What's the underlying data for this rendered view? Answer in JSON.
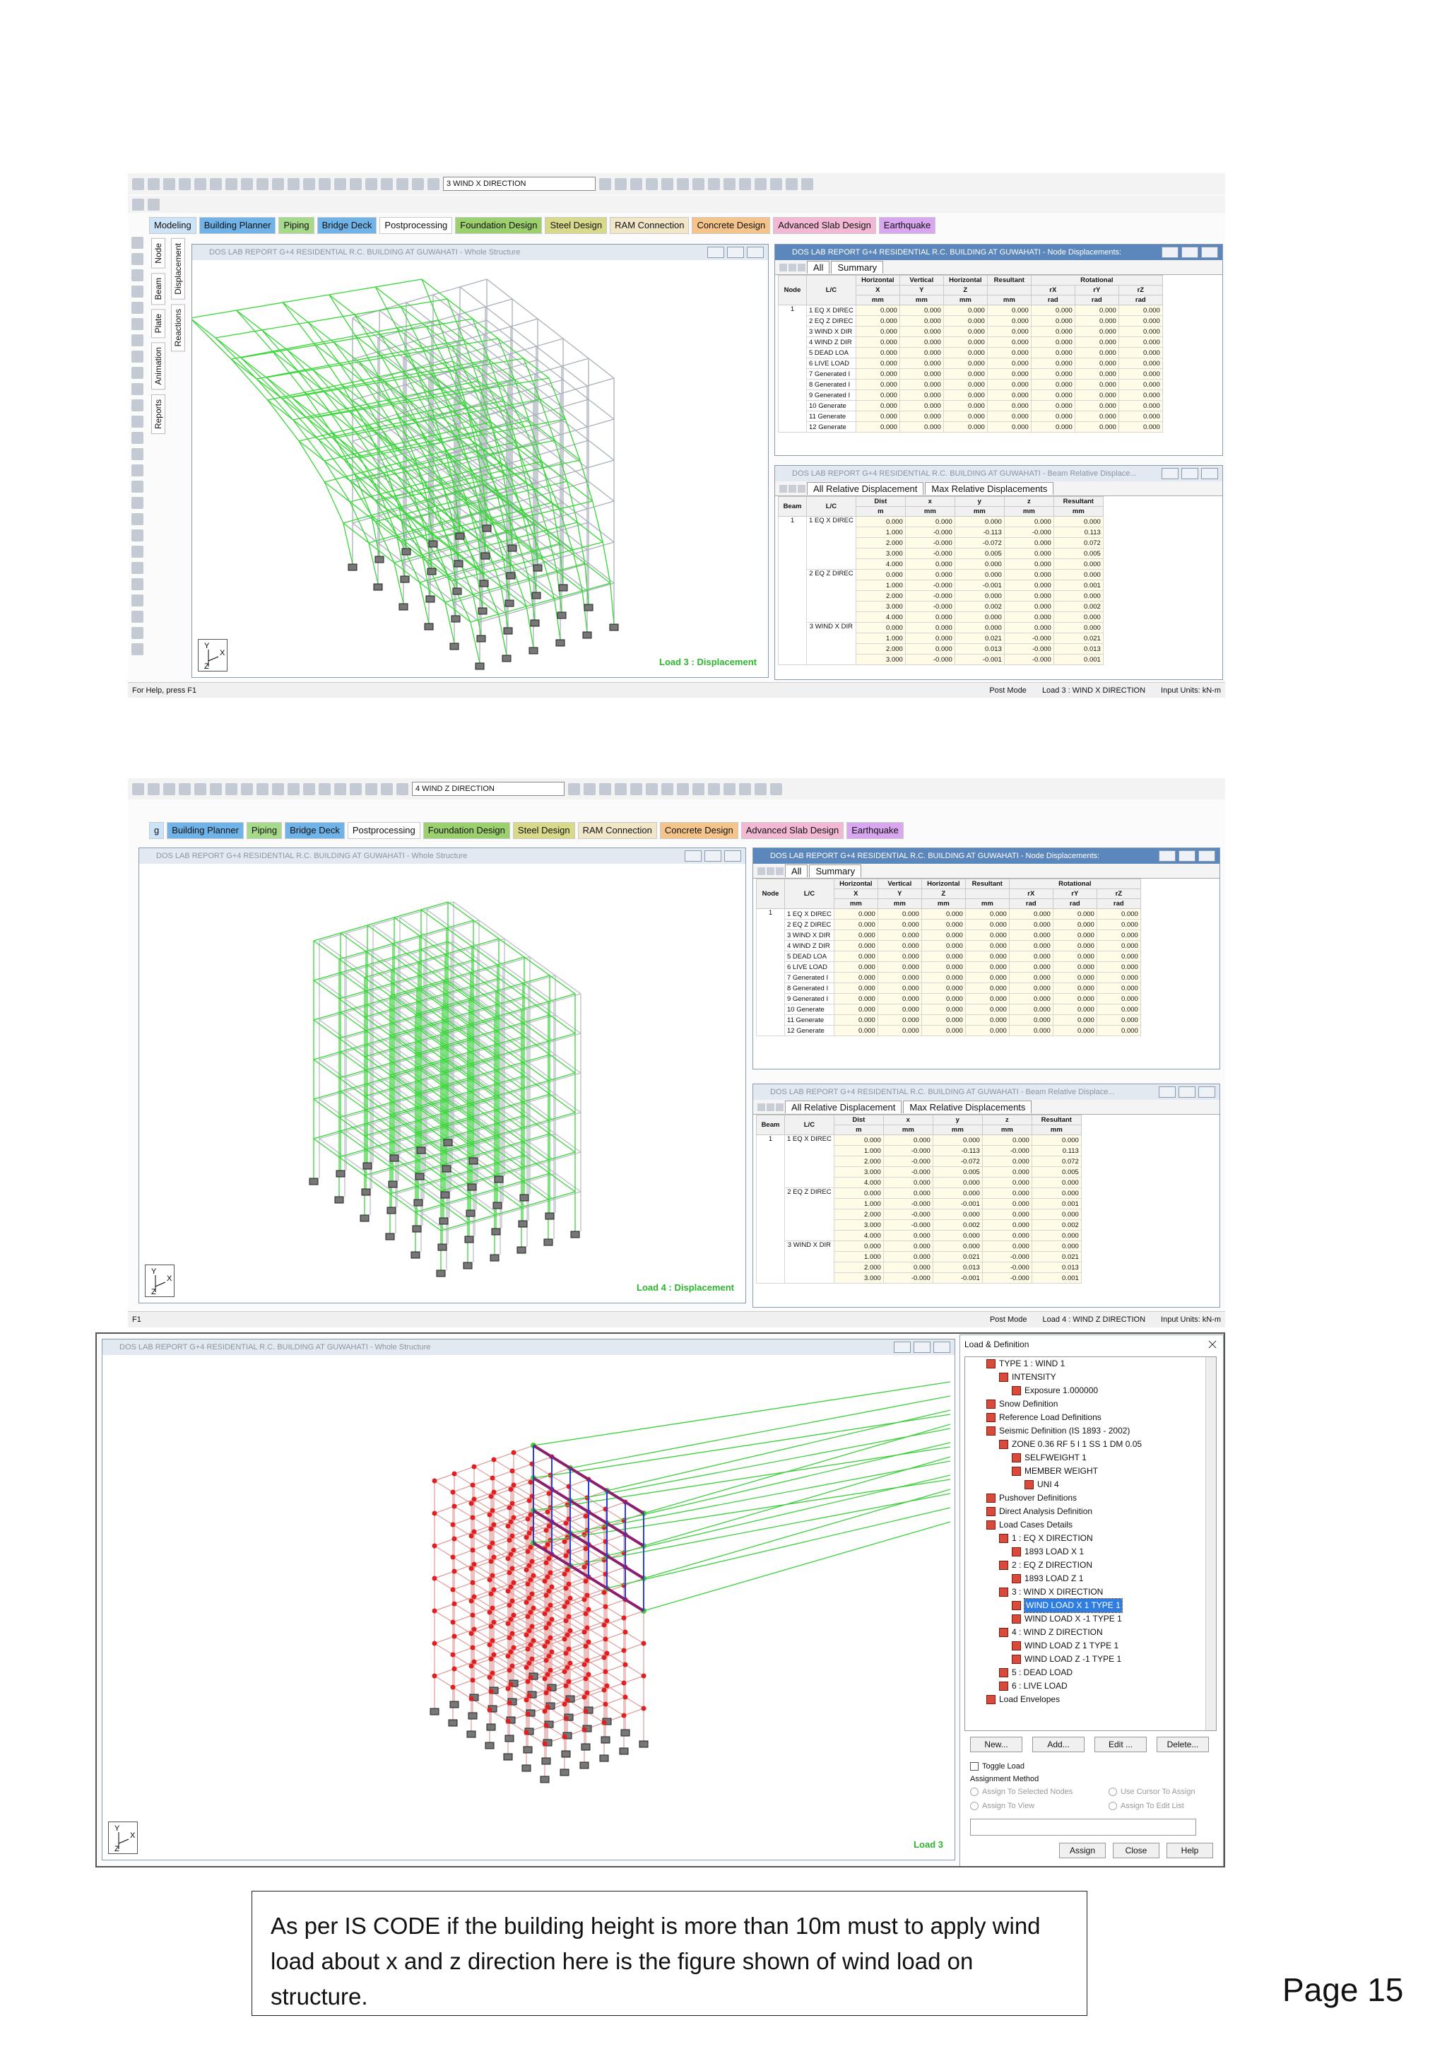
{
  "screenshot_1": {
    "toolbar_dropdown": "3 WIND X DIRECTION",
    "tabs": [
      {
        "text": "Modeling",
        "color": "#cde3f7"
      },
      {
        "text": "Building Planner",
        "color": "#6fb3e8"
      },
      {
        "text": "Piping",
        "color": "#a6d98a"
      },
      {
        "text": "Bridge Deck",
        "color": "#6fb3e8"
      },
      {
        "text": "Postprocessing",
        "color": "#ffffff"
      },
      {
        "text": "Foundation Design",
        "color": "#9ccf6e"
      },
      {
        "text": "Steel Design",
        "color": "#d9d98c"
      },
      {
        "text": "RAM Connection",
        "color": "#f2e6c9"
      },
      {
        "text": "Concrete Design",
        "color": "#f5c48a"
      },
      {
        "text": "Advanced Slab Design",
        "color": "#f2b8d4"
      },
      {
        "text": "Earthquake",
        "color": "#d9a6f0"
      }
    ],
    "side_tabs_left": [
      "Node",
      "Beam",
      "Plate",
      "Animation",
      "Reports"
    ],
    "side_tabs_right": [
      "Displacement",
      "Reactions"
    ],
    "view_title": "DOS LAB REPORT G+4 RESIDENTIAL R.C. BUILDING AT GUWAHATI - Whole Structure",
    "axis_labels": [
      "Y",
      "X",
      "Z"
    ],
    "view_label": "Load 3 : Displacement",
    "node_window_title": "DOS LAB REPORT G+4 RESIDENTIAL R.C. BUILDING AT GUWAHATI - Node Displacements:",
    "node_table": {
      "tabs": [
        "All",
        "Summary"
      ],
      "row_headers": [
        "Node",
        "L/C"
      ],
      "group_headers": [
        "Horizontal",
        "Vertical",
        "Horizontal",
        "Resultant",
        "Rotational"
      ],
      "columns": [
        "X",
        "Y",
        "Z",
        "rX",
        "rY",
        "rZ"
      ],
      "units": [
        "mm",
        "mm",
        "mm",
        "mm",
        "rad",
        "rad",
        "rad"
      ],
      "node": "1",
      "rows": [
        {
          "lc": "1 EQ X DIREC",
          "values": [
            "0.000",
            "0.000",
            "0.000",
            "0.000",
            "0.000",
            "0.000",
            "0.000"
          ]
        },
        {
          "lc": "2 EQ Z DIREC",
          "values": [
            "0.000",
            "0.000",
            "0.000",
            "0.000",
            "0.000",
            "0.000",
            "0.000"
          ]
        },
        {
          "lc": "3 WIND X DIR",
          "values": [
            "0.000",
            "0.000",
            "0.000",
            "0.000",
            "0.000",
            "0.000",
            "0.000"
          ]
        },
        {
          "lc": "4 WIND Z DIR",
          "values": [
            "0.000",
            "0.000",
            "0.000",
            "0.000",
            "0.000",
            "0.000",
            "0.000"
          ]
        },
        {
          "lc": "5 DEAD LOA",
          "values": [
            "0.000",
            "0.000",
            "0.000",
            "0.000",
            "0.000",
            "0.000",
            "0.000"
          ]
        },
        {
          "lc": "6 LIVE LOAD",
          "values": [
            "0.000",
            "0.000",
            "0.000",
            "0.000",
            "0.000",
            "0.000",
            "0.000"
          ]
        },
        {
          "lc": "7 Generated I",
          "values": [
            "0.000",
            "0.000",
            "0.000",
            "0.000",
            "0.000",
            "0.000",
            "0.000"
          ]
        },
        {
          "lc": "8 Generated I",
          "values": [
            "0.000",
            "0.000",
            "0.000",
            "0.000",
            "0.000",
            "0.000",
            "0.000"
          ]
        },
        {
          "lc": "9 Generated I",
          "values": [
            "0.000",
            "0.000",
            "0.000",
            "0.000",
            "0.000",
            "0.000",
            "0.000"
          ]
        },
        {
          "lc": "10 Generate",
          "values": [
            "0.000",
            "0.000",
            "0.000",
            "0.000",
            "0.000",
            "0.000",
            "0.000"
          ]
        },
        {
          "lc": "11 Generate",
          "values": [
            "0.000",
            "0.000",
            "0.000",
            "0.000",
            "0.000",
            "0.000",
            "0.000"
          ]
        },
        {
          "lc": "12 Generate",
          "values": [
            "0.000",
            "0.000",
            "0.000",
            "0.000",
            "0.000",
            "0.000",
            "0.000"
          ]
        }
      ]
    },
    "beam_window_title": "DOS LAB REPORT G+4 RESIDENTIAL R.C. BUILDING AT GUWAHATI - Beam Relative Displace...",
    "beam_table": {
      "tabs": [
        "All Relative Displacement",
        "Max Relative Displacements"
      ],
      "headers": [
        "Beam",
        "L/C",
        "Dist",
        "x",
        "y",
        "z",
        "Resultant"
      ],
      "units": [
        "m",
        "mm",
        "mm",
        "mm",
        "mm"
      ],
      "beam": "1",
      "groups": [
        {
          "lc": "1 EQ X DIREC",
          "rows": [
            [
              "0.000",
              "0.000",
              "0.000",
              "0.000",
              "0.000"
            ],
            [
              "1.000",
              "-0.000",
              "-0.113",
              "-0.000",
              "0.113"
            ],
            [
              "2.000",
              "-0.000",
              "-0.072",
              "0.000",
              "0.072"
            ],
            [
              "3.000",
              "-0.000",
              "0.005",
              "0.000",
              "0.005"
            ],
            [
              "4.000",
              "0.000",
              "0.000",
              "0.000",
              "0.000"
            ]
          ]
        },
        {
          "lc": "2 EQ Z DIREC",
          "rows": [
            [
              "0.000",
              "0.000",
              "0.000",
              "0.000",
              "0.000"
            ],
            [
              "1.000",
              "-0.000",
              "-0.001",
              "0.000",
              "0.001"
            ],
            [
              "2.000",
              "-0.000",
              "0.000",
              "0.000",
              "0.000"
            ],
            [
              "3.000",
              "-0.000",
              "0.002",
              "0.000",
              "0.002"
            ],
            [
              "4.000",
              "0.000",
              "0.000",
              "0.000",
              "0.000"
            ]
          ]
        },
        {
          "lc": "3 WIND X DIR",
          "rows": [
            [
              "0.000",
              "0.000",
              "0.000",
              "0.000",
              "0.000"
            ],
            [
              "1.000",
              "0.000",
              "0.021",
              "-0.000",
              "0.021"
            ],
            [
              "2.000",
              "0.000",
              "0.013",
              "-0.000",
              "0.013"
            ],
            [
              "3.000",
              "-0.000",
              "-0.001",
              "-0.000",
              "0.001"
            ]
          ]
        }
      ]
    },
    "status": {
      "help": "For Help, press F1",
      "mode": "Post Mode",
      "load": "Load 3 : WIND X DIRECTION",
      "units": "Input Units:  kN-m"
    }
  },
  "screenshot_2": {
    "toolbar_dropdown": "4 WIND Z DIRECTION",
    "tabs": [
      {
        "text": "g",
        "color": "#cde3f7"
      },
      {
        "text": "Building Planner",
        "color": "#6fb3e8"
      },
      {
        "text": "Piping",
        "color": "#a6d98a"
      },
      {
        "text": "Bridge Deck",
        "color": "#6fb3e8"
      },
      {
        "text": "Postprocessing",
        "color": "#ffffff"
      },
      {
        "text": "Foundation Design",
        "color": "#9ccf6e"
      },
      {
        "text": "Steel Design",
        "color": "#d9d98c"
      },
      {
        "text": "RAM Connection",
        "color": "#f2e6c9"
      },
      {
        "text": "Concrete Design",
        "color": "#f5c48a"
      },
      {
        "text": "Advanced Slab Design",
        "color": "#f2b8d4"
      },
      {
        "text": "Earthquake",
        "color": "#d9a6f0"
      }
    ],
    "view_title": "DOS LAB REPORT G+4 RESIDENTIAL R.C. BUILDING AT GUWAHATI - Whole Structure",
    "axis_labels": [
      "Y",
      "X",
      "Z"
    ],
    "view_label": "Load 4 : Displacement",
    "node_window_title": "DOS LAB REPORT G+4 RESIDENTIAL R.C. BUILDING AT GUWAHATI - Node Displacements:",
    "node_table": {
      "tabs": [
        "All",
        "Summary"
      ],
      "row_headers": [
        "Node",
        "L/C"
      ],
      "group_headers": [
        "Horizontal",
        "Vertical",
        "Horizontal",
        "Resultant",
        "Rotational"
      ],
      "columns": [
        "X",
        "Y",
        "Z",
        "rX",
        "rY",
        "rZ"
      ],
      "units": [
        "mm",
        "mm",
        "mm",
        "mm",
        "rad",
        "rad",
        "rad"
      ],
      "node": "1",
      "rows": [
        {
          "lc": "1 EQ X DIREC",
          "values": [
            "0.000",
            "0.000",
            "0.000",
            "0.000",
            "0.000",
            "0.000",
            "0.000"
          ]
        },
        {
          "lc": "2 EQ Z DIREC",
          "values": [
            "0.000",
            "0.000",
            "0.000",
            "0.000",
            "0.000",
            "0.000",
            "0.000"
          ]
        },
        {
          "lc": "3 WIND X DIR",
          "values": [
            "0.000",
            "0.000",
            "0.000",
            "0.000",
            "0.000",
            "0.000",
            "0.000"
          ]
        },
        {
          "lc": "4 WIND Z DIR",
          "values": [
            "0.000",
            "0.000",
            "0.000",
            "0.000",
            "0.000",
            "0.000",
            "0.000"
          ]
        },
        {
          "lc": "5 DEAD LOA",
          "values": [
            "0.000",
            "0.000",
            "0.000",
            "0.000",
            "0.000",
            "0.000",
            "0.000"
          ]
        },
        {
          "lc": "6 LIVE LOAD",
          "values": [
            "0.000",
            "0.000",
            "0.000",
            "0.000",
            "0.000",
            "0.000",
            "0.000"
          ]
        },
        {
          "lc": "7 Generated I",
          "values": [
            "0.000",
            "0.000",
            "0.000",
            "0.000",
            "0.000",
            "0.000",
            "0.000"
          ]
        },
        {
          "lc": "8 Generated I",
          "values": [
            "0.000",
            "0.000",
            "0.000",
            "0.000",
            "0.000",
            "0.000",
            "0.000"
          ]
        },
        {
          "lc": "9 Generated I",
          "values": [
            "0.000",
            "0.000",
            "0.000",
            "0.000",
            "0.000",
            "0.000",
            "0.000"
          ]
        },
        {
          "lc": "10 Generate",
          "values": [
            "0.000",
            "0.000",
            "0.000",
            "0.000",
            "0.000",
            "0.000",
            "0.000"
          ]
        },
        {
          "lc": "11 Generate",
          "values": [
            "0.000",
            "0.000",
            "0.000",
            "0.000",
            "0.000",
            "0.000",
            "0.000"
          ]
        },
        {
          "lc": "12 Generate",
          "values": [
            "0.000",
            "0.000",
            "0.000",
            "0.000",
            "0.000",
            "0.000",
            "0.000"
          ]
        }
      ]
    },
    "beam_window_title": "DOS LAB REPORT G+4 RESIDENTIAL R.C. BUILDING AT GUWAHATI - Beam Relative Displace...",
    "beam_table": {
      "tabs": [
        "All Relative Displacement",
        "Max Relative Displacements"
      ],
      "headers": [
        "Beam",
        "L/C",
        "Dist",
        "x",
        "y",
        "z",
        "Resultant"
      ],
      "units": [
        "m",
        "mm",
        "mm",
        "mm",
        "mm"
      ],
      "beam": "1",
      "groups": [
        {
          "lc": "1 EQ X DIREC",
          "rows": [
            [
              "0.000",
              "0.000",
              "0.000",
              "0.000",
              "0.000"
            ],
            [
              "1.000",
              "-0.000",
              "-0.113",
              "-0.000",
              "0.113"
            ],
            [
              "2.000",
              "-0.000",
              "-0.072",
              "0.000",
              "0.072"
            ],
            [
              "3.000",
              "-0.000",
              "0.005",
              "0.000",
              "0.005"
            ],
            [
              "4.000",
              "0.000",
              "0.000",
              "0.000",
              "0.000"
            ]
          ]
        },
        {
          "lc": "2 EQ Z DIREC",
          "rows": [
            [
              "0.000",
              "0.000",
              "0.000",
              "0.000",
              "0.000"
            ],
            [
              "1.000",
              "-0.000",
              "-0.001",
              "0.000",
              "0.001"
            ],
            [
              "2.000",
              "-0.000",
              "0.000",
              "0.000",
              "0.000"
            ],
            [
              "3.000",
              "-0.000",
              "0.002",
              "0.000",
              "0.002"
            ],
            [
              "4.000",
              "0.000",
              "0.000",
              "0.000",
              "0.000"
            ]
          ]
        },
        {
          "lc": "3 WIND X DIR",
          "rows": [
            [
              "0.000",
              "0.000",
              "0.000",
              "0.000",
              "0.000"
            ],
            [
              "1.000",
              "0.000",
              "0.021",
              "-0.000",
              "0.021"
            ],
            [
              "2.000",
              "0.000",
              "0.013",
              "-0.000",
              "0.013"
            ],
            [
              "3.000",
              "-0.000",
              "-0.001",
              "-0.000",
              "0.001"
            ]
          ]
        }
      ]
    },
    "status": {
      "help": "F1",
      "mode": "Post Mode",
      "load": "Load 4 : WIND Z DIRECTION",
      "units": "Input Units:  kN-m"
    }
  },
  "screenshot_3": {
    "view_title": "DOS LAB REPORT G+4 RESIDENTIAL R.C. BUILDING AT GUWAHATI - Whole Structure",
    "axis_labels": [
      "Y",
      "X",
      "Z"
    ],
    "view_label": "Load 3",
    "load_panel": {
      "title": "Load & Definition",
      "tree": [
        {
          "text": "TYPE 1 : WIND 1",
          "children": [
            {
              "text": "INTENSITY",
              "children": [
                {
                  "text": "Exposure 1.000000"
                }
              ]
            }
          ]
        },
        {
          "text": "Snow Definition"
        },
        {
          "text": "Reference Load Definitions"
        },
        {
          "text": "Seismic Definition (IS 1893 - 2002)",
          "children": [
            {
              "text": "ZONE 0.36 RF 5 I 1 SS 1 DM 0.05",
              "children": [
                {
                  "text": "SELFWEIGHT 1"
                },
                {
                  "text": "MEMBER WEIGHT",
                  "children": [
                    {
                      "text": "UNI 4"
                    }
                  ]
                }
              ]
            }
          ]
        },
        {
          "text": "Pushover Definitions"
        },
        {
          "text": "Direct Analysis Definition"
        },
        {
          "text": "Load Cases Details",
          "children": [
            {
              "text": "1 : EQ X DIRECTION",
              "children": [
                {
                  "text": "1893 LOAD X 1"
                }
              ]
            },
            {
              "text": "2 : EQ Z DIRECTION",
              "children": [
                {
                  "text": "1893 LOAD Z 1"
                }
              ]
            },
            {
              "text": "3 : WIND X DIRECTION",
              "children": [
                {
                  "text": "WIND LOAD X 1 TYPE 1",
                  "selected": true
                },
                {
                  "text": "WIND LOAD X -1 TYPE 1"
                }
              ]
            },
            {
              "text": "4 : WIND Z DIRECTION",
              "children": [
                {
                  "text": "WIND LOAD Z 1 TYPE 1"
                },
                {
                  "text": "WIND LOAD Z -1 TYPE 1"
                }
              ]
            },
            {
              "text": "5 : DEAD LOAD"
            },
            {
              "text": "6 : LIVE LOAD"
            }
          ]
        },
        {
          "text": "Load Envelopes"
        }
      ],
      "buttons": [
        "New...",
        "Add...",
        "Edit ...",
        "Delete..."
      ],
      "toggle": "Toggle Load",
      "assignment_label": "Assignment Method",
      "assign_options": [
        "Assign To Selected Nodes",
        "Use Cursor To Assign",
        "Assign To View",
        "Assign To Edit List"
      ],
      "bottom_buttons": [
        "Assign",
        "Close",
        "Help"
      ]
    }
  },
  "caption": "As per IS CODE if the building height is more than 10m must to apply wind load about x and z direction here is the figure shown of wind load on structure.",
  "page_number": "Page 15"
}
